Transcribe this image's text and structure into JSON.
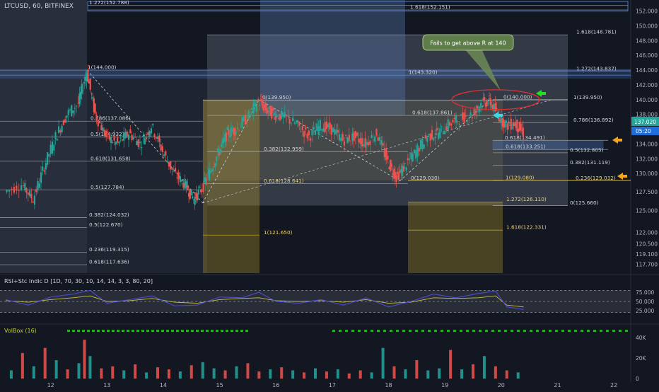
{
  "header": {
    "title": "LTCUSD, 60, BITFINEX",
    "rsi_label": "RSI+Stc Indic D [1D, 70, 30, 10, 14, 14, 3, 3, 80, 20]",
    "vol_label": "VolBox (16)"
  },
  "colors": {
    "bg": "#131722",
    "up": "#26a69a",
    "down": "#ef5350",
    "fib_line": "#c9c9c9",
    "yellow": "#d9b526",
    "blue_box": "#4a78c4",
    "price_badge": "#26a69a",
    "time_badge": "#1e6fd9"
  },
  "price_axis": {
    "ticks": [
      "152.000",
      "150.000",
      "148.000",
      "146.000",
      "144.000",
      "142.000",
      "140.000",
      "138.000",
      "136.000",
      "134.000",
      "132.000",
      "130.000",
      "127.500",
      "125.000",
      "122.000",
      "120.500",
      "119.100",
      "117.700"
    ],
    "current_price": "137.020",
    "countdown": "05:20"
  },
  "rsi_axis": {
    "ticks": [
      "75.000",
      "50.000",
      "25.000"
    ]
  },
  "vol_axis": {
    "ticks": [
      "40K",
      "20K",
      "0"
    ]
  },
  "time_axis": {
    "ticks": [
      "12",
      "13",
      "14",
      "15",
      "16",
      "17",
      "18",
      "19",
      "20",
      "21",
      "22"
    ]
  },
  "annotation": {
    "text": "Fails to get above R at 140"
  },
  "fib_levels": [
    {
      "text": "1.272(152.788)",
      "price": 152.788
    },
    {
      "text": "1.618(152.151)",
      "price": 152.151
    },
    {
      "text": "1.618(148.781)",
      "price": 148.781
    },
    {
      "text": "1(144.000)",
      "price": 144.0
    },
    {
      "text": "1.272(143.837)",
      "price": 143.837
    },
    {
      "text": "1(143.320)",
      "price": 143.32
    },
    {
      "text": "0(139.950)",
      "price": 139.95
    },
    {
      "text": "0(140.000)",
      "price": 140.0
    },
    {
      "text": "1(139.950)",
      "price": 139.95
    },
    {
      "text": "0.786(137.086)",
      "price": 137.086
    },
    {
      "text": "0.618(137.861)",
      "price": 137.861
    },
    {
      "text": "0.786(136.892)",
      "price": 136.892
    },
    {
      "text": "0.618(134.491)",
      "price": 134.491
    },
    {
      "text": "0.5(132.805)",
      "price": 132.805
    },
    {
      "text": "0.618(133.251)",
      "price": 133.251
    },
    {
      "text": "0.5(134.932)",
      "price": 134.932
    },
    {
      "text": "0.382(132.959)",
      "price": 132.959
    },
    {
      "text": "0.618(131.658)",
      "price": 131.658
    },
    {
      "text": "0.382(131.119)",
      "price": 131.119
    },
    {
      "text": "0(129.030)",
      "price": 129.03
    },
    {
      "text": "1(129.080)",
      "price": 129.08
    },
    {
      "text": "0.236(129.032)",
      "price": 129.032
    },
    {
      "text": "0.618(128.641)",
      "price": 128.641
    },
    {
      "text": "0.5(127.784)",
      "price": 127.784
    },
    {
      "text": "1.272(126.110)",
      "price": 126.11
    },
    {
      "text": "0(125.660)",
      "price": 125.66
    },
    {
      "text": "0.382(124.032)",
      "price": 124.032
    },
    {
      "text": "0.5(122.670)",
      "price": 122.67
    },
    {
      "text": "1.618(122.331)",
      "price": 122.331
    },
    {
      "text": "1(121.650)",
      "price": 121.65
    },
    {
      "text": "0.236(119.315)",
      "price": 119.315
    },
    {
      "text": "0.618(117.636)",
      "price": 117.636
    }
  ],
  "chart_data": {
    "type": "line",
    "symbol": "LTCUSD",
    "interval": "60",
    "exchange": "BITFINEX",
    "ylim": [
      116.5,
      153.5
    ],
    "xlim": [
      11.1,
      22.3
    ],
    "price_path": {
      "x": [
        11.2,
        11.5,
        11.7,
        11.9,
        12.1,
        12.3,
        12.5,
        12.65,
        12.8,
        13.0,
        13.2,
        13.4,
        13.6,
        13.8,
        14.0,
        14.2,
        14.4,
        14.55,
        14.7,
        14.85,
        15.0,
        15.15,
        15.3,
        15.5,
        15.7,
        15.85,
        16.0,
        16.2,
        16.4,
        16.6,
        16.8,
        17.0,
        17.2,
        17.4,
        17.6,
        17.8,
        18.0,
        18.15,
        18.3,
        18.5,
        18.7,
        18.9,
        19.1,
        19.3,
        19.5,
        19.65,
        19.8,
        19.95,
        20.1,
        20.25,
        20.4
      ],
      "y": [
        127.5,
        128.5,
        126.5,
        131.0,
        135.0,
        138.0,
        139.5,
        143.8,
        138.0,
        135.0,
        134.0,
        135.5,
        134.0,
        136.5,
        133.0,
        130.0,
        128.5,
        126.5,
        128.0,
        130.5,
        133.0,
        135.5,
        136.0,
        137.5,
        139.8,
        138.5,
        138.0,
        137.5,
        136.5,
        135.0,
        136.5,
        136.0,
        134.5,
        135.0,
        134.0,
        135.5,
        131.5,
        129.5,
        131.0,
        133.0,
        135.0,
        135.5,
        136.8,
        137.5,
        138.0,
        139.5,
        139.8,
        138.0,
        136.5,
        136.8,
        135.5
      ]
    },
    "rsi": {
      "ylim": [
        0,
        100
      ],
      "levels": [
        80,
        50,
        20
      ],
      "x": [
        11.2,
        11.6,
        12.0,
        12.4,
        12.7,
        13.0,
        13.4,
        13.8,
        14.2,
        14.6,
        15.0,
        15.4,
        15.7,
        16.0,
        16.4,
        16.8,
        17.2,
        17.6,
        18.0,
        18.4,
        18.8,
        19.2,
        19.6,
        19.9,
        20.1,
        20.4
      ],
      "line1": [
        55,
        40,
        62,
        70,
        80,
        45,
        55,
        65,
        38,
        40,
        62,
        60,
        75,
        50,
        45,
        55,
        40,
        60,
        35,
        50,
        70,
        60,
        72,
        78,
        35,
        28
      ],
      "line2": [
        52,
        48,
        55,
        60,
        65,
        50,
        52,
        58,
        48,
        45,
        55,
        58,
        60,
        52,
        50,
        52,
        48,
        55,
        45,
        48,
        60,
        58,
        60,
        65,
        40,
        35
      ]
    },
    "volume": {
      "ylim": [
        0,
        45000
      ],
      "x": [
        11.3,
        11.5,
        11.7,
        11.9,
        12.1,
        12.3,
        12.5,
        12.6,
        12.7,
        12.9,
        13.1,
        13.3,
        13.5,
        13.7,
        13.9,
        14.1,
        14.3,
        14.5,
        14.7,
        14.9,
        15.1,
        15.3,
        15.5,
        15.7,
        15.9,
        16.1,
        16.3,
        16.5,
        16.7,
        16.9,
        17.1,
        17.3,
        17.5,
        17.7,
        17.9,
        18.1,
        18.3,
        18.5,
        18.7,
        18.9,
        19.1,
        19.3,
        19.5,
        19.7,
        19.9,
        20.1,
        20.3
      ],
      "values": [
        8000,
        25000,
        12000,
        30000,
        18000,
        9000,
        15000,
        38000,
        22000,
        10000,
        12000,
        8000,
        14000,
        6000,
        11000,
        9000,
        7000,
        13000,
        16000,
        10000,
        8000,
        12000,
        15000,
        7000,
        9000,
        11000,
        8000,
        6000,
        10000,
        7000,
        9000,
        5000,
        8000,
        6000,
        30000,
        12000,
        9000,
        18000,
        8000,
        10000,
        28000,
        9000,
        14000,
        22000,
        12000,
        8000,
        6000
      ],
      "up": [
        true,
        false,
        true,
        false,
        true,
        false,
        true,
        false,
        true,
        false,
        false,
        true,
        false,
        true,
        false,
        false,
        true,
        false,
        true,
        true,
        false,
        true,
        false,
        false,
        true,
        false,
        true,
        false,
        true,
        false,
        true,
        false,
        false,
        true,
        true,
        false,
        true,
        false,
        true,
        true,
        false,
        true,
        false,
        true,
        false,
        false,
        true
      ]
    }
  }
}
